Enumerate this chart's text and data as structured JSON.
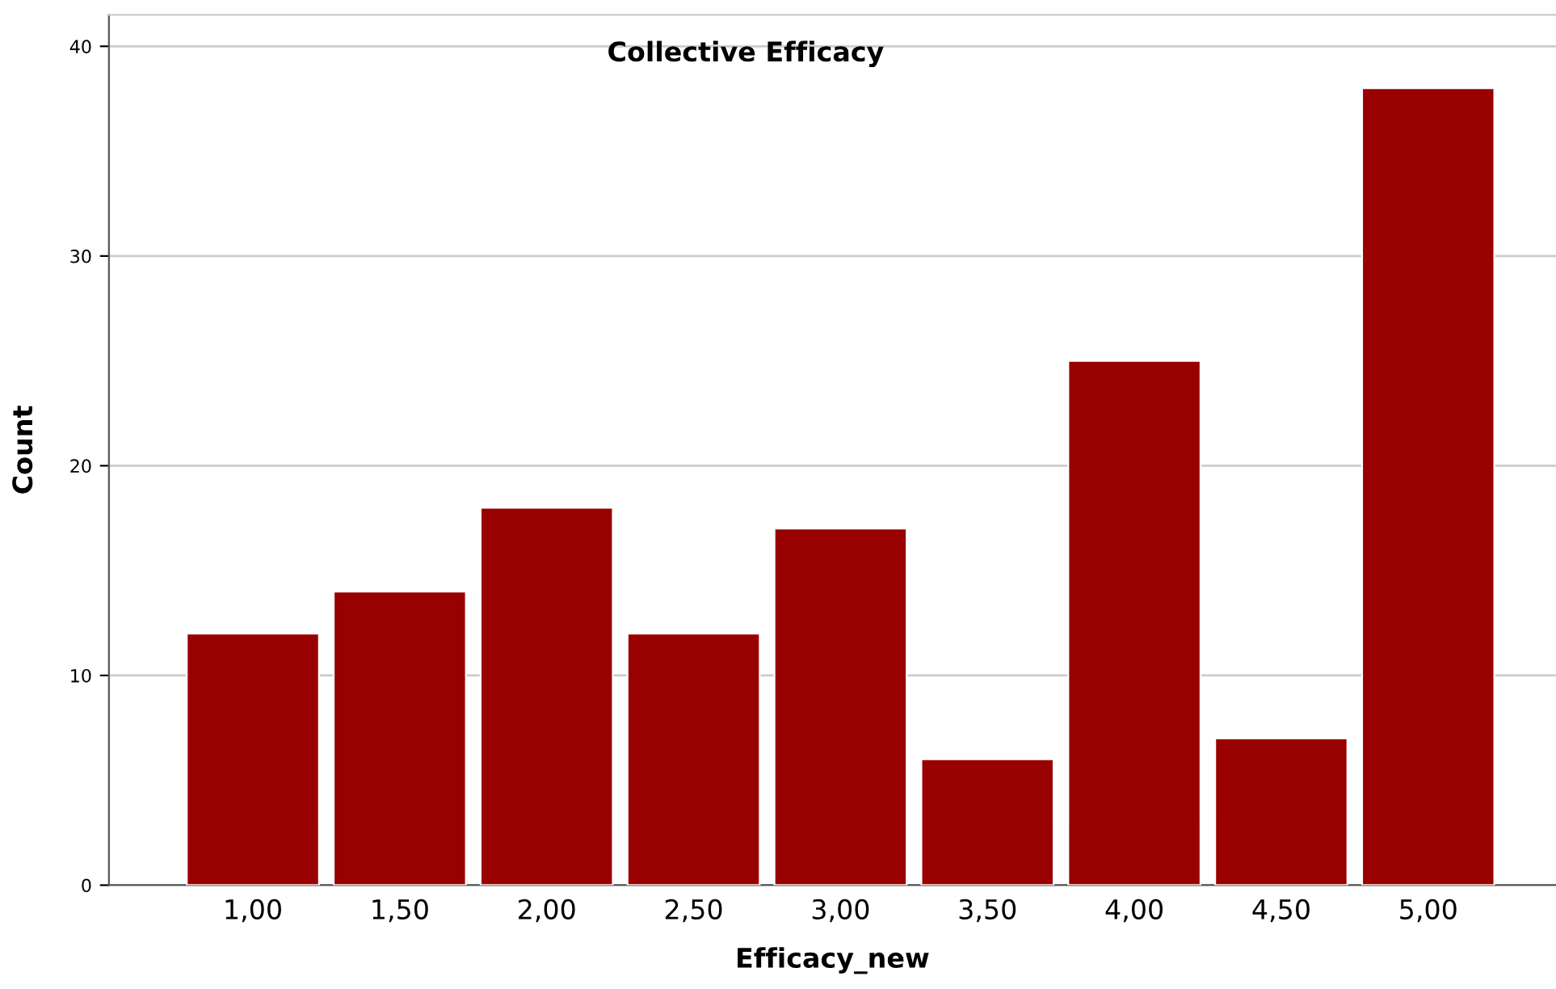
{
  "chart_data": {
    "type": "bar",
    "title": "Collective Efficacy",
    "xlabel": "Efficacy_new",
    "ylabel": "Count",
    "categories": [
      "1,00",
      "1,50",
      "2,00",
      "2,50",
      "3,00",
      "3,50",
      "4,00",
      "4,50",
      "5,00"
    ],
    "values": [
      12,
      14,
      18,
      12,
      17,
      6,
      25,
      7,
      38
    ],
    "color": "#990000",
    "ylim": [
      0,
      41.5
    ],
    "yticks": [
      0,
      10,
      20,
      30,
      40
    ],
    "grid": "y",
    "legend": false
  }
}
